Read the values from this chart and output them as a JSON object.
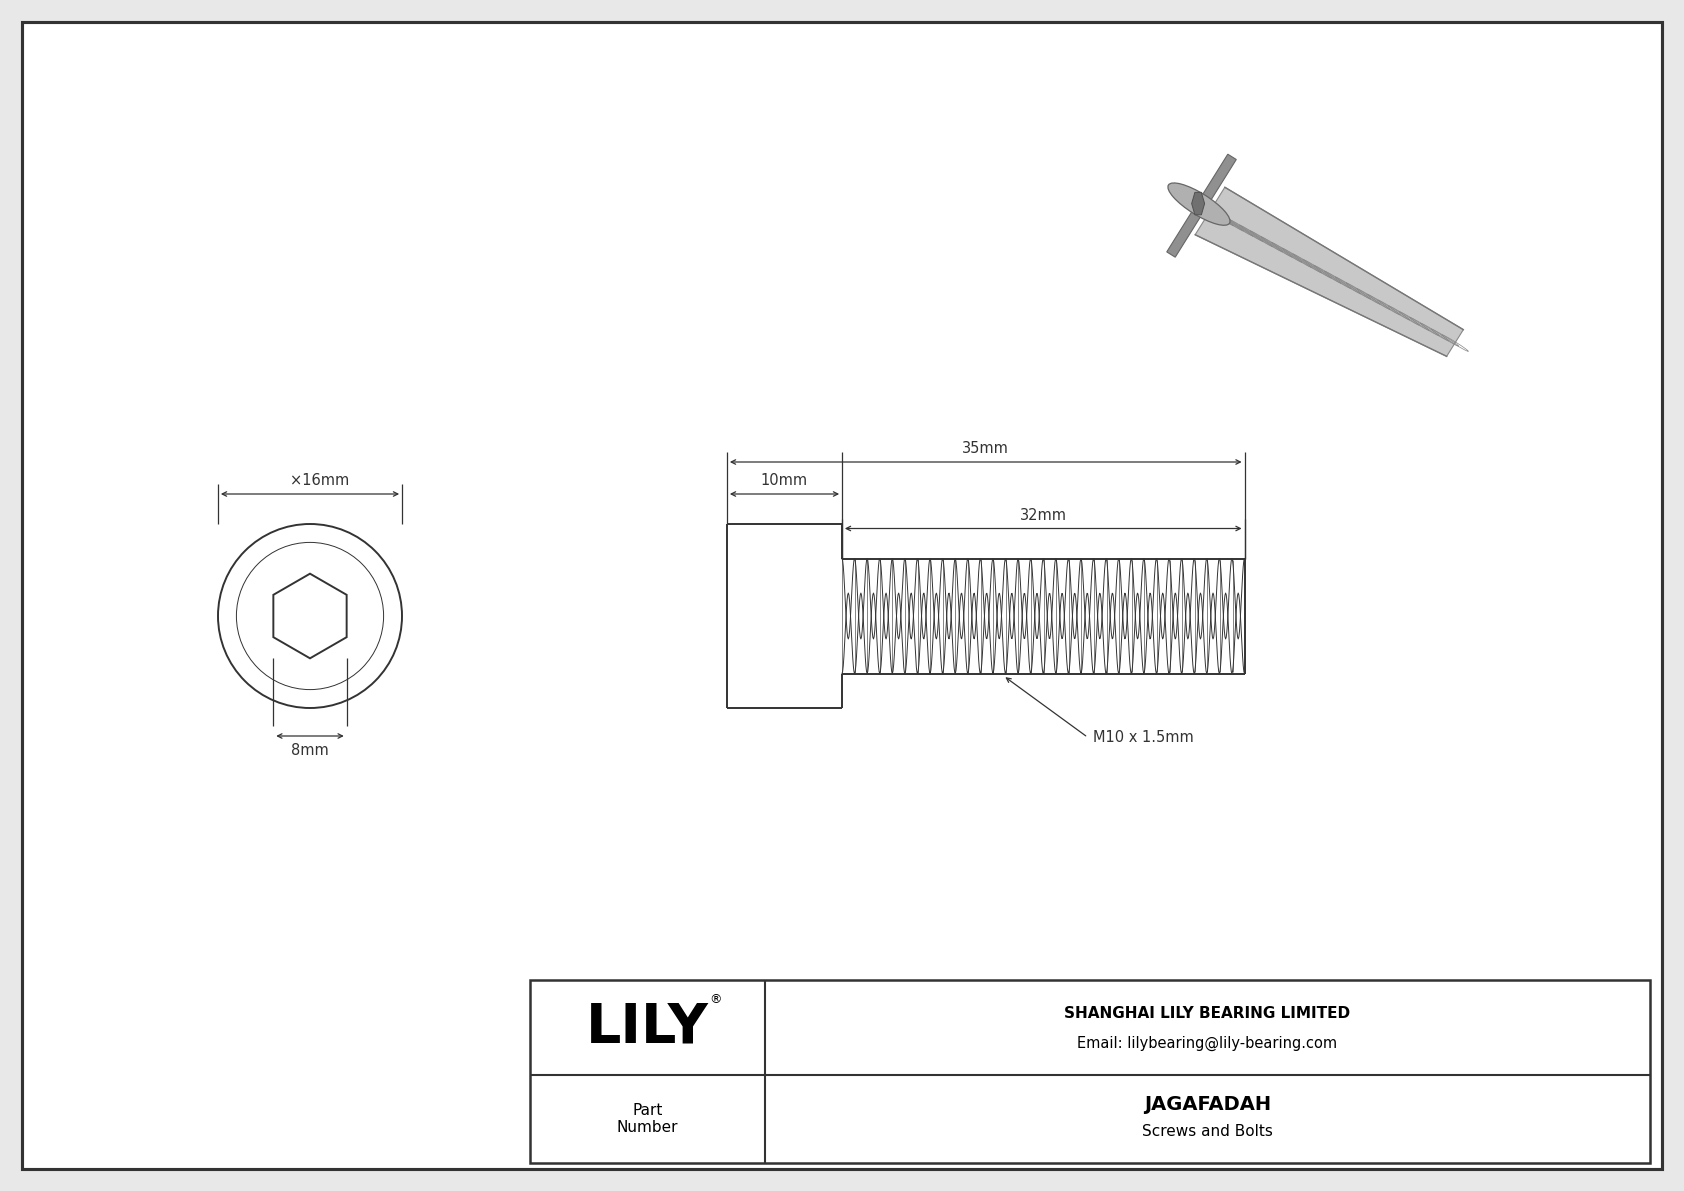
{
  "bg_color": "#e8e8e8",
  "inner_bg": "#ffffff",
  "border_color": "#333333",
  "line_color": "#333333",
  "title": "JAGAFADAH",
  "subtitle": "Screws and Bolts",
  "company": "SHANGHAI LILY BEARING LIMITED",
  "email": "Email: lilybearing@lily-bearing.com",
  "logo_text": "LILY",
  "part_label": "Part\nNumber",
  "dim_diameter": "×16mm",
  "dim_hex": "8mm",
  "dim_head_len": "10mm",
  "dim_total_len": "35mm",
  "dim_thread_len": "32mm",
  "dim_thread_label": "M10 x 1.5mm",
  "font_size_dims": 10.5,
  "font_size_title": 14,
  "font_size_logo": 40,
  "font_size_company": 11,
  "font_size_part": 11
}
